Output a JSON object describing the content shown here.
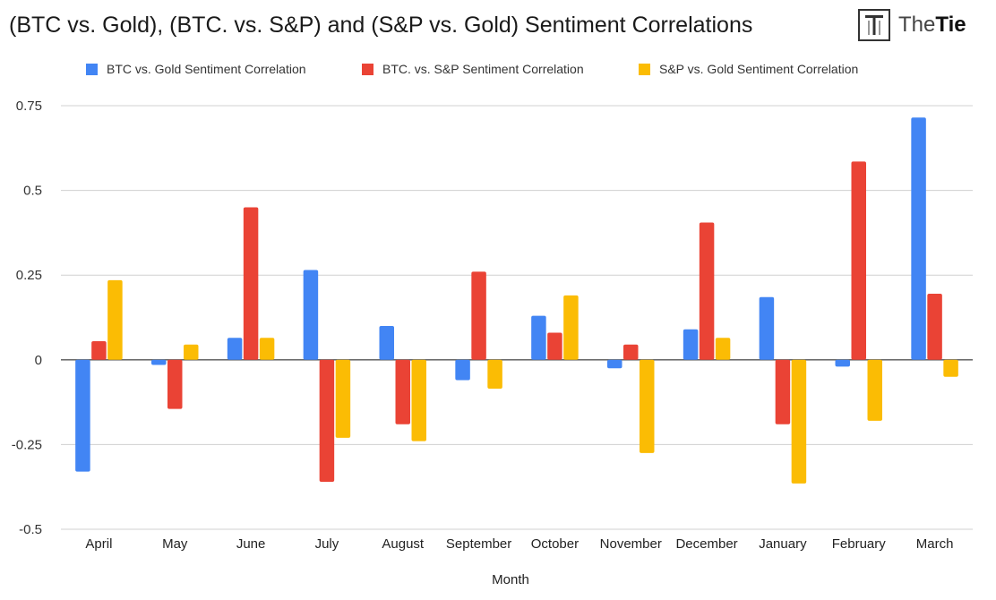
{
  "brand": {
    "logo_text_light": "The",
    "logo_text_bold": "Tie",
    "logo_icon": "the-tie-logo-icon"
  },
  "chart_data": {
    "type": "bar",
    "title": "(BTC vs. Gold), (BTC. vs. S&P) and (S&P vs. Gold) Sentiment Correlations",
    "xlabel": "Month",
    "ylabel": "",
    "ylim": [
      -0.5,
      0.75
    ],
    "yticks": [
      0.75,
      0.5,
      0.25,
      0,
      -0.25,
      -0.5
    ],
    "ytick_labels": [
      "0.75",
      "0.5",
      "0.25",
      "0",
      "-0.25",
      "-0.5"
    ],
    "grid": true,
    "legend_position": "top",
    "categories": [
      "April",
      "May",
      "June",
      "July",
      "August",
      "September",
      "October",
      "November",
      "December",
      "January",
      "February",
      "March"
    ],
    "series": [
      {
        "name": "BTC vs. Gold Sentiment Correlation",
        "color": "#4285F4",
        "values": [
          -0.33,
          -0.015,
          0.065,
          0.265,
          0.1,
          -0.06,
          0.13,
          -0.025,
          0.09,
          0.185,
          -0.02,
          0.715
        ]
      },
      {
        "name": "BTC. vs. S&P Sentiment Correlation",
        "color": "#EA4335",
        "values": [
          0.055,
          -0.145,
          0.45,
          -0.36,
          -0.19,
          0.26,
          0.08,
          0.045,
          0.405,
          -0.19,
          0.585,
          0.195
        ]
      },
      {
        "name": "S&P vs. Gold Sentiment Correlation",
        "color": "#FBBC04",
        "values": [
          0.235,
          0.045,
          0.065,
          -0.23,
          -0.24,
          -0.085,
          0.19,
          -0.275,
          0.065,
          -0.365,
          -0.18,
          -0.05
        ]
      }
    ]
  }
}
